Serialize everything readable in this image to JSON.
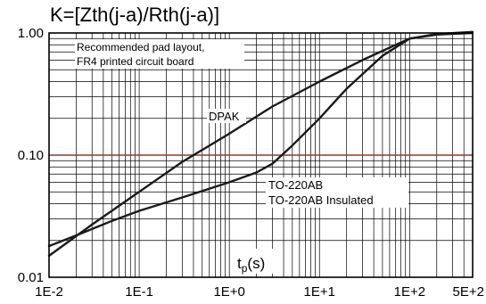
{
  "chart_data": {
    "type": "line",
    "title": "K=[Zth(j-a)/Rth(j-a)]",
    "xlabel": "t",
    "xlabel_sub": "p",
    "xlabel_unit": "(s)",
    "ylabel": "",
    "x_scale": "log",
    "y_scale": "log",
    "xlim": [
      0.01,
      500
    ],
    "ylim": [
      0.01,
      1.0
    ],
    "grid": true,
    "x_ticks": [
      0.01,
      0.1,
      1,
      10,
      100,
      500
    ],
    "x_tick_labels": [
      "1E-2",
      "1E-1",
      "1E+0",
      "1E+1",
      "1E+2",
      "5E+2"
    ],
    "y_ticks": [
      0.01,
      0.1,
      1.0
    ],
    "y_tick_labels": [
      "0.01",
      "0.10",
      "1.00"
    ],
    "reference_line": {
      "y": 0.1,
      "color": "#8b3a3a"
    },
    "annotation_lines": [
      "Recommended pad layout,",
      "FR4 printed circuit board"
    ],
    "series": [
      {
        "name": "DPAK",
        "x": [
          0.01,
          0.03,
          0.1,
          0.3,
          1,
          3,
          10,
          30,
          70,
          100,
          200,
          500
        ],
        "y": [
          0.015,
          0.027,
          0.05,
          0.088,
          0.15,
          0.25,
          0.4,
          0.6,
          0.8,
          0.9,
          0.97,
          1.0
        ]
      },
      {
        "name": "TO-220AB / TO-220AB Insulated",
        "label_lines": [
          "TO-220AB",
          "TO-220AB Insulated"
        ],
        "x": [
          0.01,
          0.02,
          0.05,
          0.1,
          0.3,
          1,
          2,
          3,
          5,
          10,
          20,
          50,
          100,
          200,
          500
        ],
        "y": [
          0.018,
          0.022,
          0.029,
          0.035,
          0.045,
          0.06,
          0.072,
          0.085,
          0.12,
          0.2,
          0.35,
          0.65,
          0.9,
          0.98,
          1.02
        ]
      }
    ]
  }
}
